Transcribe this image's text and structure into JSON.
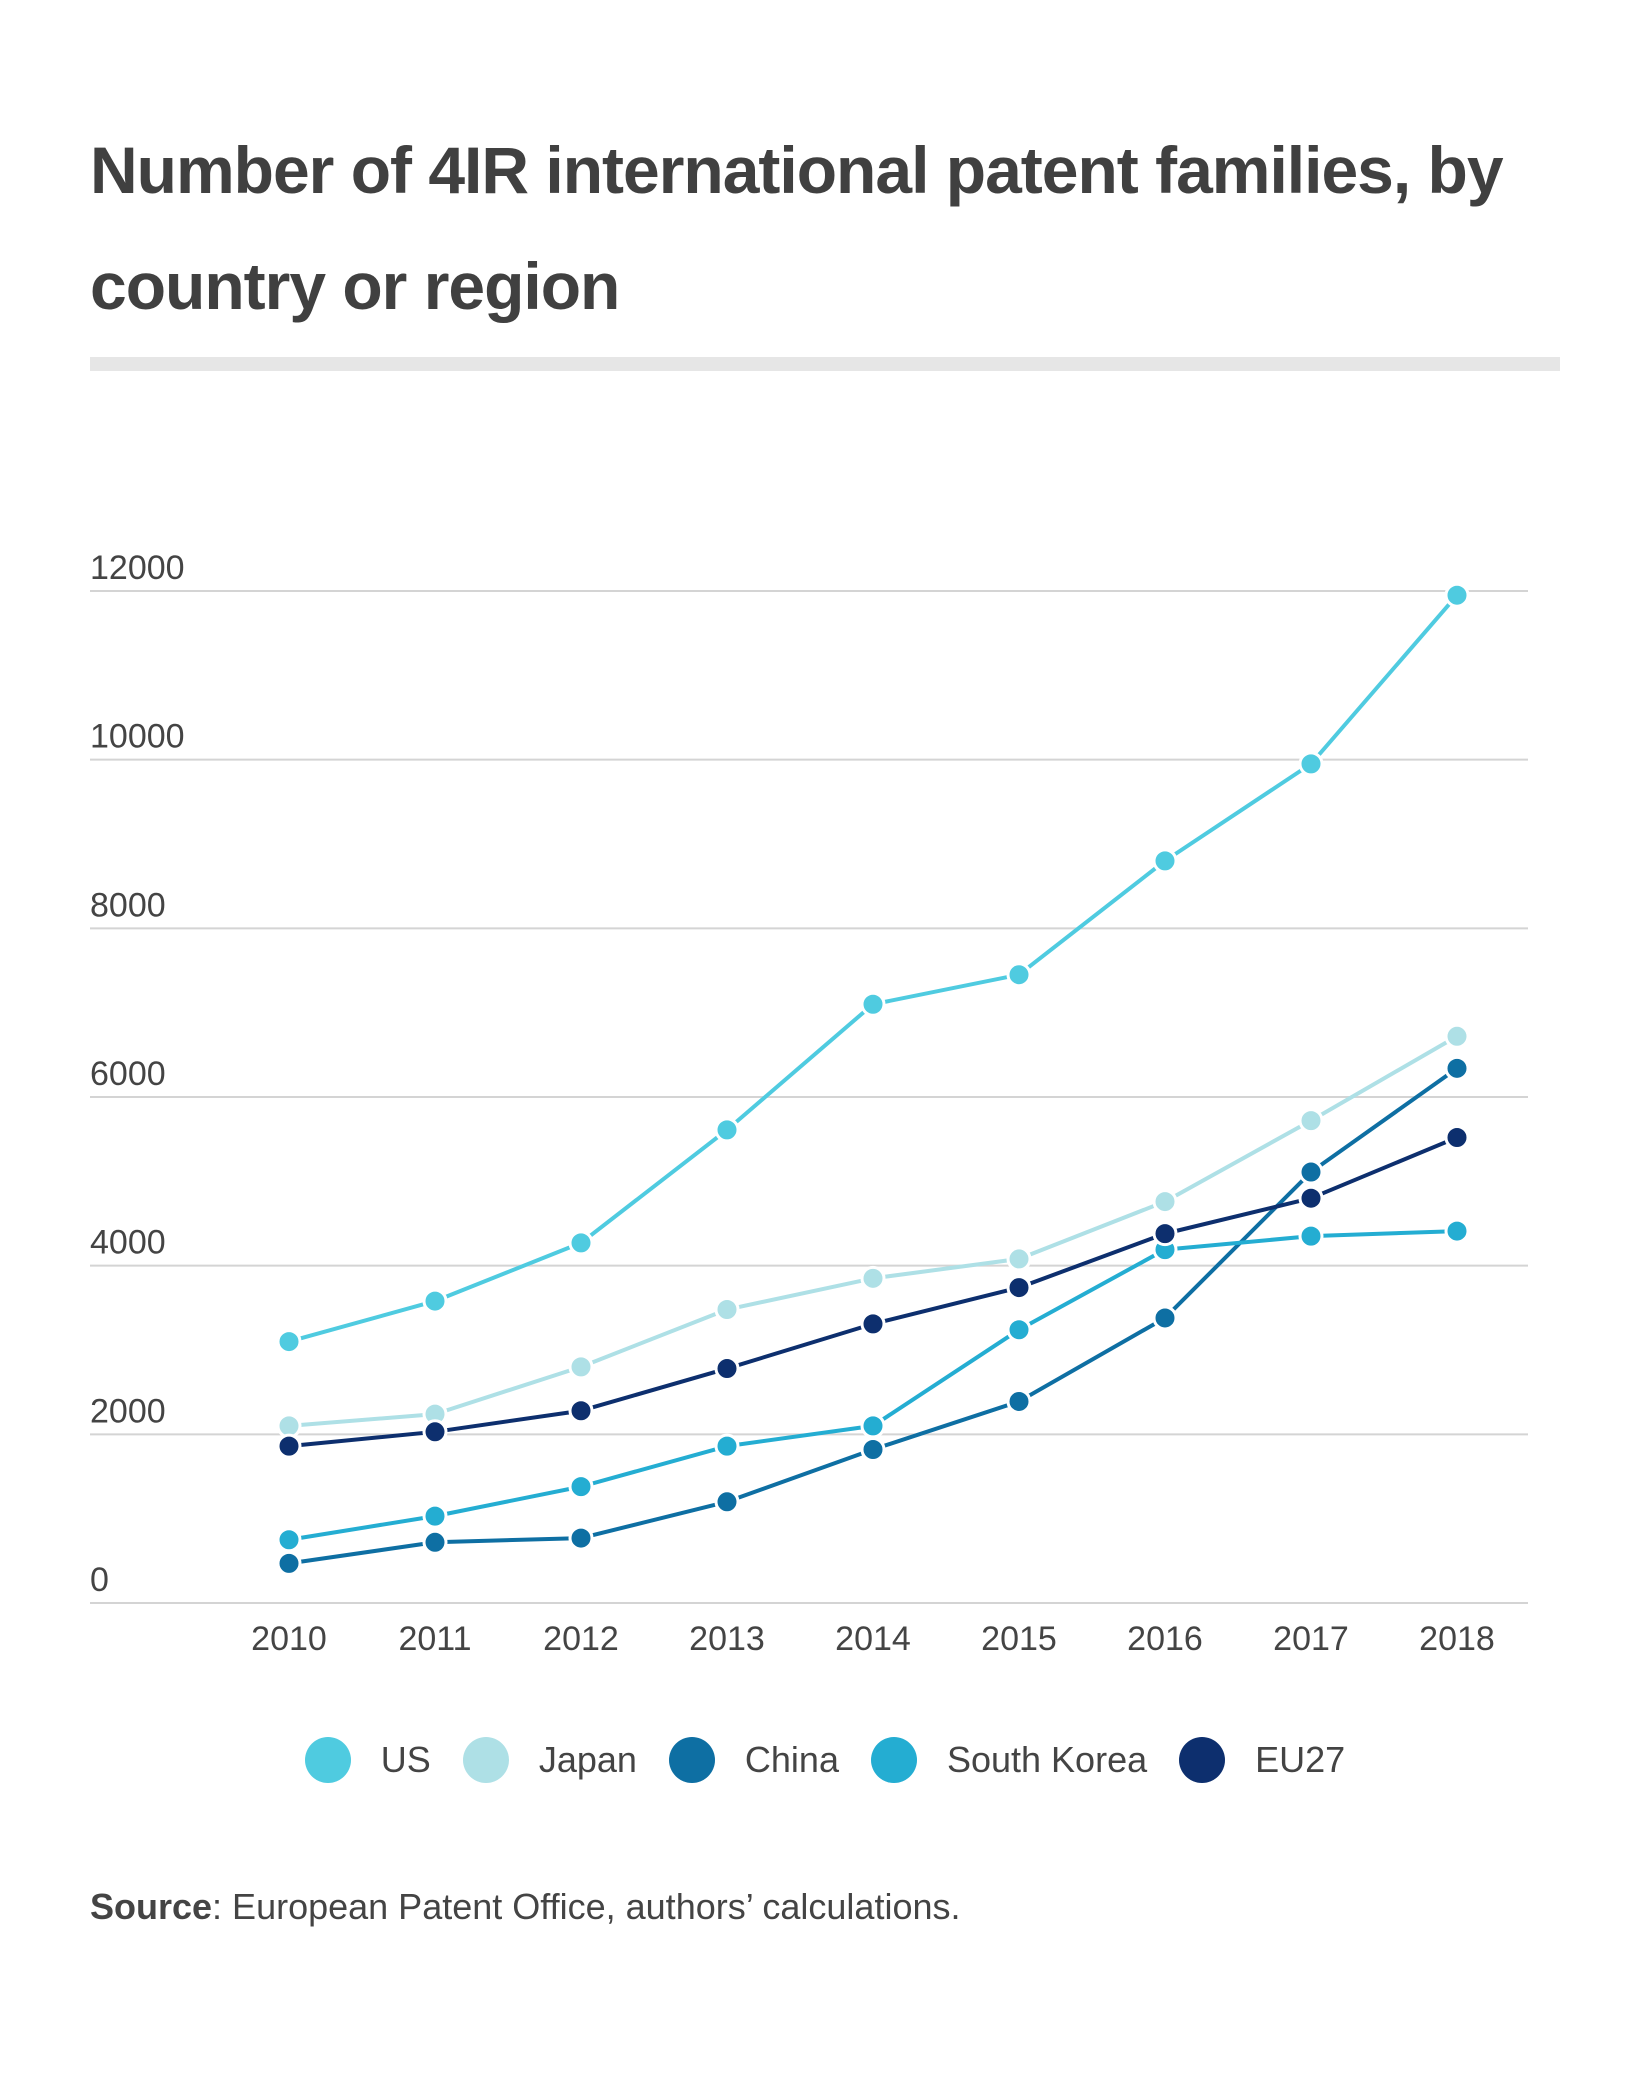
{
  "chart_data": {
    "type": "line",
    "title": "Number of 4IR international patent families, by country or region",
    "xlabel": "",
    "ylabel": "",
    "x": [
      "2010",
      "2011",
      "2012",
      "2013",
      "2014",
      "2015",
      "2016",
      "2017",
      "2018"
    ],
    "yticks": [
      "0",
      "2000",
      "4000",
      "6000",
      "8000",
      "10000",
      "12000"
    ],
    "ylim": [
      0,
      12000
    ],
    "grid": true,
    "legend_position": "bottom",
    "series": [
      {
        "name": "US",
        "color": "#4fcbe0",
        "values": [
          3100,
          3580,
          4270,
          5610,
          7100,
          7450,
          8800,
          9950,
          11950
        ]
      },
      {
        "name": "Japan",
        "color": "#aee0e6",
        "values": [
          2100,
          2240,
          2800,
          3480,
          3850,
          4080,
          4760,
          5720,
          6720
        ]
      },
      {
        "name": "China",
        "color": "#0e6fa3",
        "values": [
          470,
          720,
          770,
          1200,
          1820,
          2390,
          3380,
          5110,
          6340
        ]
      },
      {
        "name": "South Korea",
        "color": "#24add2",
        "values": [
          750,
          1030,
          1380,
          1860,
          2100,
          3240,
          4190,
          4350,
          4410
        ]
      },
      {
        "name": "EU27",
        "color": "#0d2f6e",
        "values": [
          1860,
          2030,
          2280,
          2780,
          3310,
          3740,
          4380,
          4800,
          5520
        ]
      }
    ]
  },
  "source": {
    "label": "Source",
    "text": ": European Patent Office, authors’ calculations."
  }
}
